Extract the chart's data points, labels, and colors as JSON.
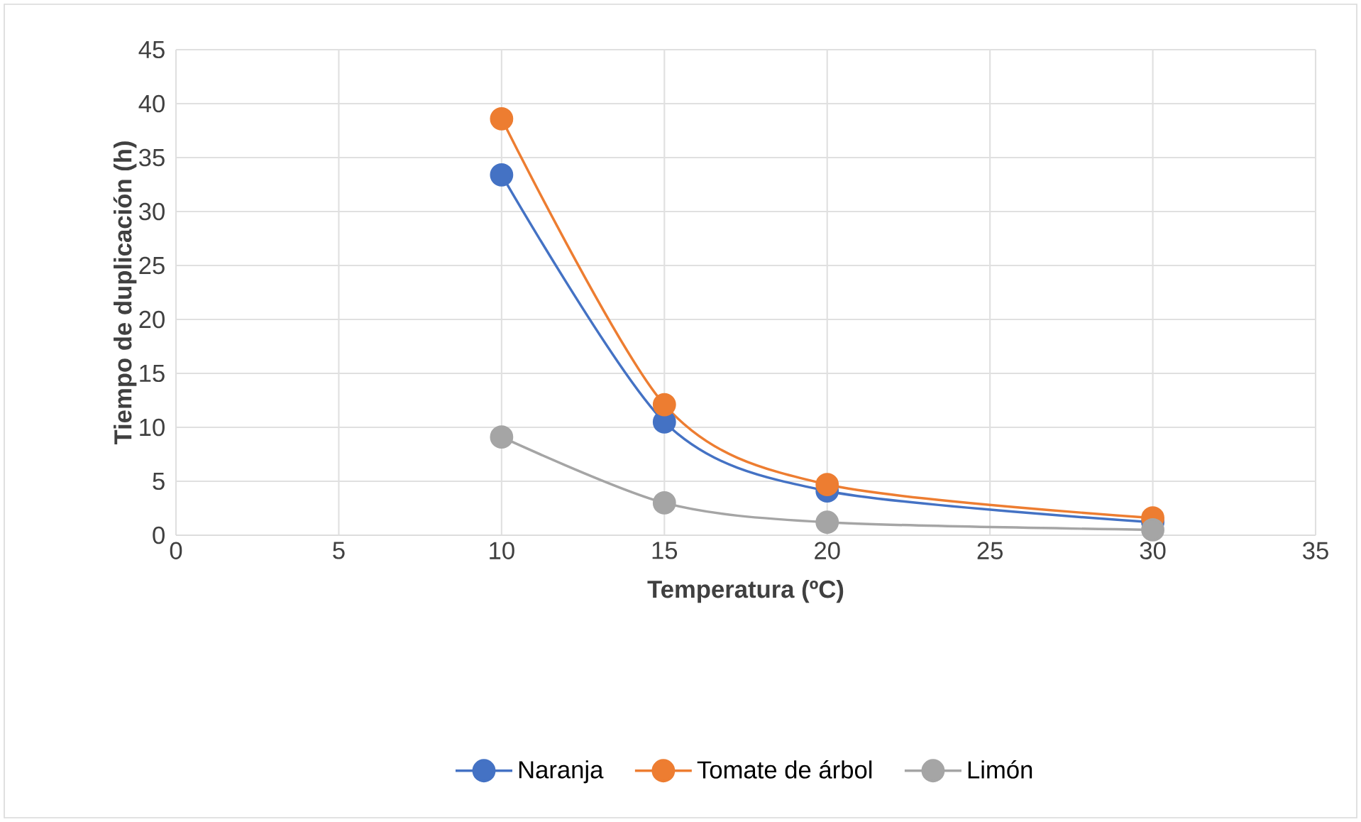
{
  "chart_data": {
    "type": "line",
    "xlabel": "Temperatura (ºC)",
    "ylabel": "Tiempo de duplicación (h)",
    "x": [
      10,
      15,
      20,
      30
    ],
    "series": [
      {
        "name": "Naranja",
        "color": "#4472c4",
        "values": [
          33.4,
          10.5,
          4.1,
          1.2
        ]
      },
      {
        "name": "Tomate de árbol",
        "color": "#ed7d31",
        "values": [
          38.6,
          12.1,
          4.7,
          1.6
        ]
      },
      {
        "name": "Limón",
        "color": "#a5a5a5",
        "values": [
          9.1,
          3.0,
          1.2,
          0.5
        ]
      }
    ],
    "xlim": [
      0,
      35
    ],
    "xticks": [
      0,
      5,
      10,
      15,
      20,
      25,
      30,
      35
    ],
    "ylim": [
      0,
      45
    ],
    "yticks": [
      0,
      5,
      10,
      15,
      20,
      25,
      30,
      35,
      40,
      45
    ],
    "grid": true,
    "legend": "bottom",
    "marker": "circle",
    "line_style": "solid"
  }
}
